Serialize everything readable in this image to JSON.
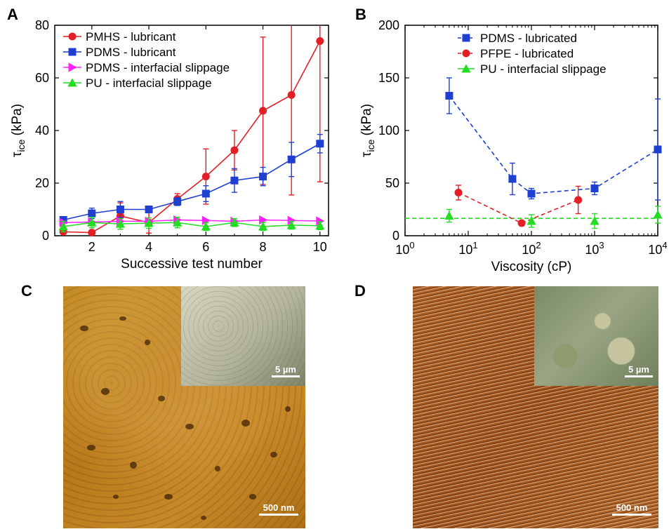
{
  "panels": {
    "a": {
      "label": "A"
    },
    "b": {
      "label": "B"
    },
    "c": {
      "label": "C",
      "scale_main": "500 nm",
      "scale_inset": "5 µm"
    },
    "d": {
      "label": "D",
      "scale_main": "500 nm",
      "scale_inset": "5 µm"
    }
  },
  "chart_data": [
    {
      "type": "line",
      "xlabel": "Successive test number",
      "ylabel": "τice (kPa)",
      "xlim": [
        0.7,
        10.3
      ],
      "ylim": [
        0,
        80
      ],
      "xticks": [
        2,
        4,
        6,
        8,
        10
      ],
      "yticks": [
        0,
        20,
        40,
        60,
        80
      ],
      "legend_position": "top-left",
      "series": [
        {
          "name": "PMHS - lubricant",
          "color": "#e41e26",
          "marker": "circle",
          "x": [
            1,
            2,
            3,
            4,
            5,
            6,
            7,
            8,
            9,
            10
          ],
          "y": [
            1.5,
            1.2,
            7.5,
            5,
            14,
            22.5,
            32.5,
            47.5,
            53.5,
            74
          ],
          "err": [
            0.5,
            0.5,
            5,
            4,
            2,
            10.5,
            7.5,
            28,
            38,
            53.5
          ]
        },
        {
          "name": "PDMS - lubricant",
          "color": "#1f3fd0",
          "marker": "square",
          "x": [
            1,
            2,
            3,
            4,
            5,
            6,
            7,
            8,
            9,
            10
          ],
          "y": [
            6,
            8.5,
            10,
            10,
            13,
            16,
            21,
            22.5,
            29,
            35
          ],
          "err": [
            0.5,
            2,
            3,
            0.5,
            1.5,
            3,
            4.5,
            3.5,
            6.5,
            3.5
          ]
        },
        {
          "name": "PDMS - interfacial slippage",
          "color": "#ff22ff",
          "marker": "triangle-right",
          "x": [
            1,
            2,
            3,
            4,
            5,
            6,
            7,
            8,
            9,
            10
          ],
          "y": [
            5,
            5.2,
            5.5,
            5.5,
            6,
            5.8,
            5.5,
            6,
            5.8,
            5.6
          ],
          "err": [
            0.3,
            0.3,
            0.3,
            0.3,
            0.3,
            0.3,
            0.3,
            0.3,
            0.3,
            0.3
          ]
        },
        {
          "name": "PU - interfacial slippage",
          "color": "#22dd22",
          "marker": "triangle-up",
          "x": [
            1,
            2,
            3,
            4,
            5,
            6,
            7,
            8,
            9,
            10
          ],
          "y": [
            3.5,
            5,
            4.5,
            4.8,
            5,
            3.5,
            5,
            3.5,
            4,
            3.8
          ],
          "err": [
            2,
            2,
            2,
            2,
            2,
            1.5,
            1.5,
            1.5,
            1.5,
            1.5
          ]
        }
      ]
    },
    {
      "type": "line",
      "xlabel": "Viscosity (cP)",
      "ylabel": "τice (kPa)",
      "xscale": "log",
      "xlim": [
        1,
        10000
      ],
      "ylim": [
        0,
        200
      ],
      "xticks": [
        "10^0",
        "10^1",
        "10^2",
        "10^3",
        "10^4"
      ],
      "yticks": [
        0,
        50,
        100,
        150,
        200
      ],
      "legend_position": "top-center",
      "hline": {
        "y": 16.5,
        "color": "#22dd22",
        "style": "dashed"
      },
      "series": [
        {
          "name": "PDMS - lubricated",
          "color": "#1f3fd0",
          "marker": "square",
          "dashed": true,
          "x": [
            5,
            50,
            100,
            1000,
            10000
          ],
          "y": [
            133,
            54,
            40,
            45,
            82
          ],
          "err": [
            17,
            15,
            5,
            6,
            48
          ]
        },
        {
          "name": "PFPE - lubricated",
          "color": "#e41e26",
          "marker": "circle",
          "dashed": true,
          "x": [
            7,
            70,
            550
          ],
          "y": [
            41,
            12,
            34
          ],
          "err": [
            7,
            2,
            13
          ]
        },
        {
          "name": "PU - interfacial slippage",
          "color": "#22dd22",
          "marker": "triangle-up",
          "dashed": false,
          "x": [
            5,
            100,
            1000,
            10000
          ],
          "y": [
            19,
            14,
            14,
            20
          ],
          "err": [
            6,
            6,
            7,
            8
          ]
        }
      ]
    }
  ]
}
